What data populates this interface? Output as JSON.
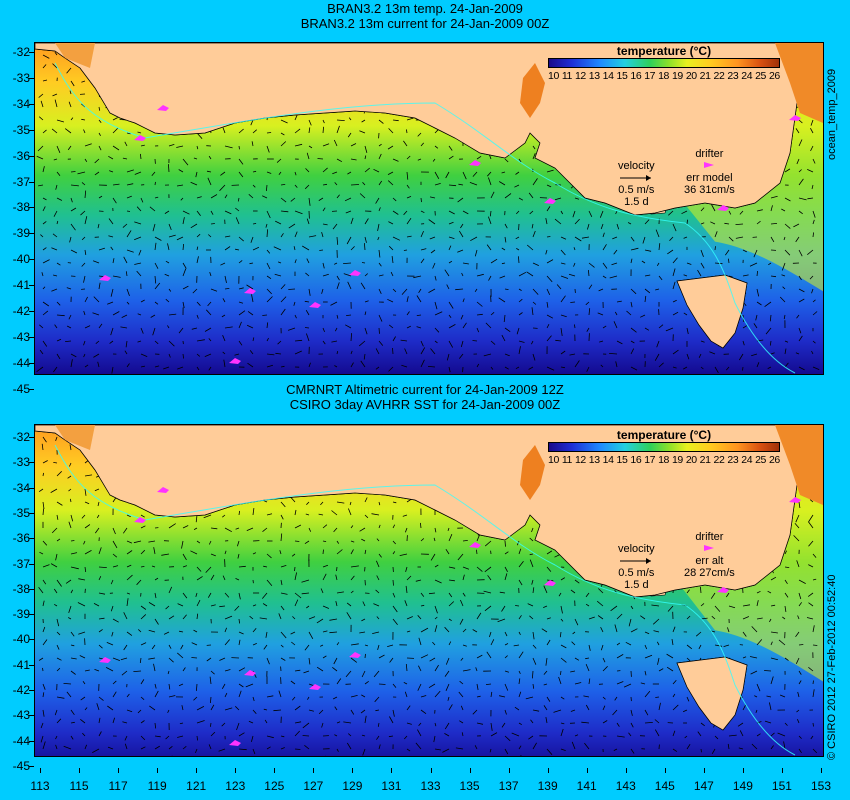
{
  "panels": [
    {
      "title_line1": "BRAN3.2 13m temp. 24-Jan-2009",
      "title_line2": "BRAN3.2 13m current for 24-Jan-2009 00Z",
      "colorbar_title": "temperature (°C)",
      "velocity_label": "velocity",
      "velocity_scale": "0.5 m/s",
      "velocity_scale2": "1.5 d",
      "drifter_label": "drifter",
      "err_label": "err model",
      "err_value": "36 31cm/s",
      "side_label": "ocean_temp_2009"
    },
    {
      "title_line1": "CMRNRT Altimetric current for 24-Jan-2009 12Z",
      "title_line2": "CSIRO 3day AVHRR SST for 24-Jan-2009 00Z",
      "colorbar_title": "temperature (°C)",
      "velocity_label": "velocity",
      "velocity_scale": "0.5 m/s",
      "velocity_scale2": "1.5 d",
      "drifter_label": "drifter",
      "err_label": "err alt",
      "err_value": "28 27cm/s",
      "side_label": "© CSIRO 2012  27-Feb-2012 00:52:40"
    }
  ],
  "colorbar_ticks": [
    "10",
    "11",
    "12",
    "13",
    "14",
    "15",
    "16",
    "17",
    "18",
    "19",
    "20",
    "21",
    "22",
    "23",
    "24",
    "25",
    "26"
  ],
  "y_ticks": [
    "-32",
    "-33",
    "-34",
    "-35",
    "-36",
    "-37",
    "-38",
    "-39",
    "-40",
    "-41",
    "-42",
    "-43",
    "-44",
    "-45"
  ],
  "x_ticks": [
    "113",
    "115",
    "117",
    "119",
    "121",
    "123",
    "125",
    "127",
    "129",
    "131",
    "133",
    "135",
    "137",
    "139",
    "141",
    "143",
    "145",
    "147",
    "149",
    "151",
    "153"
  ],
  "colors": {
    "background": "#00ccff",
    "land": "#ffcc99",
    "drifter": "#ff33ff",
    "arrow": "#000000"
  }
}
